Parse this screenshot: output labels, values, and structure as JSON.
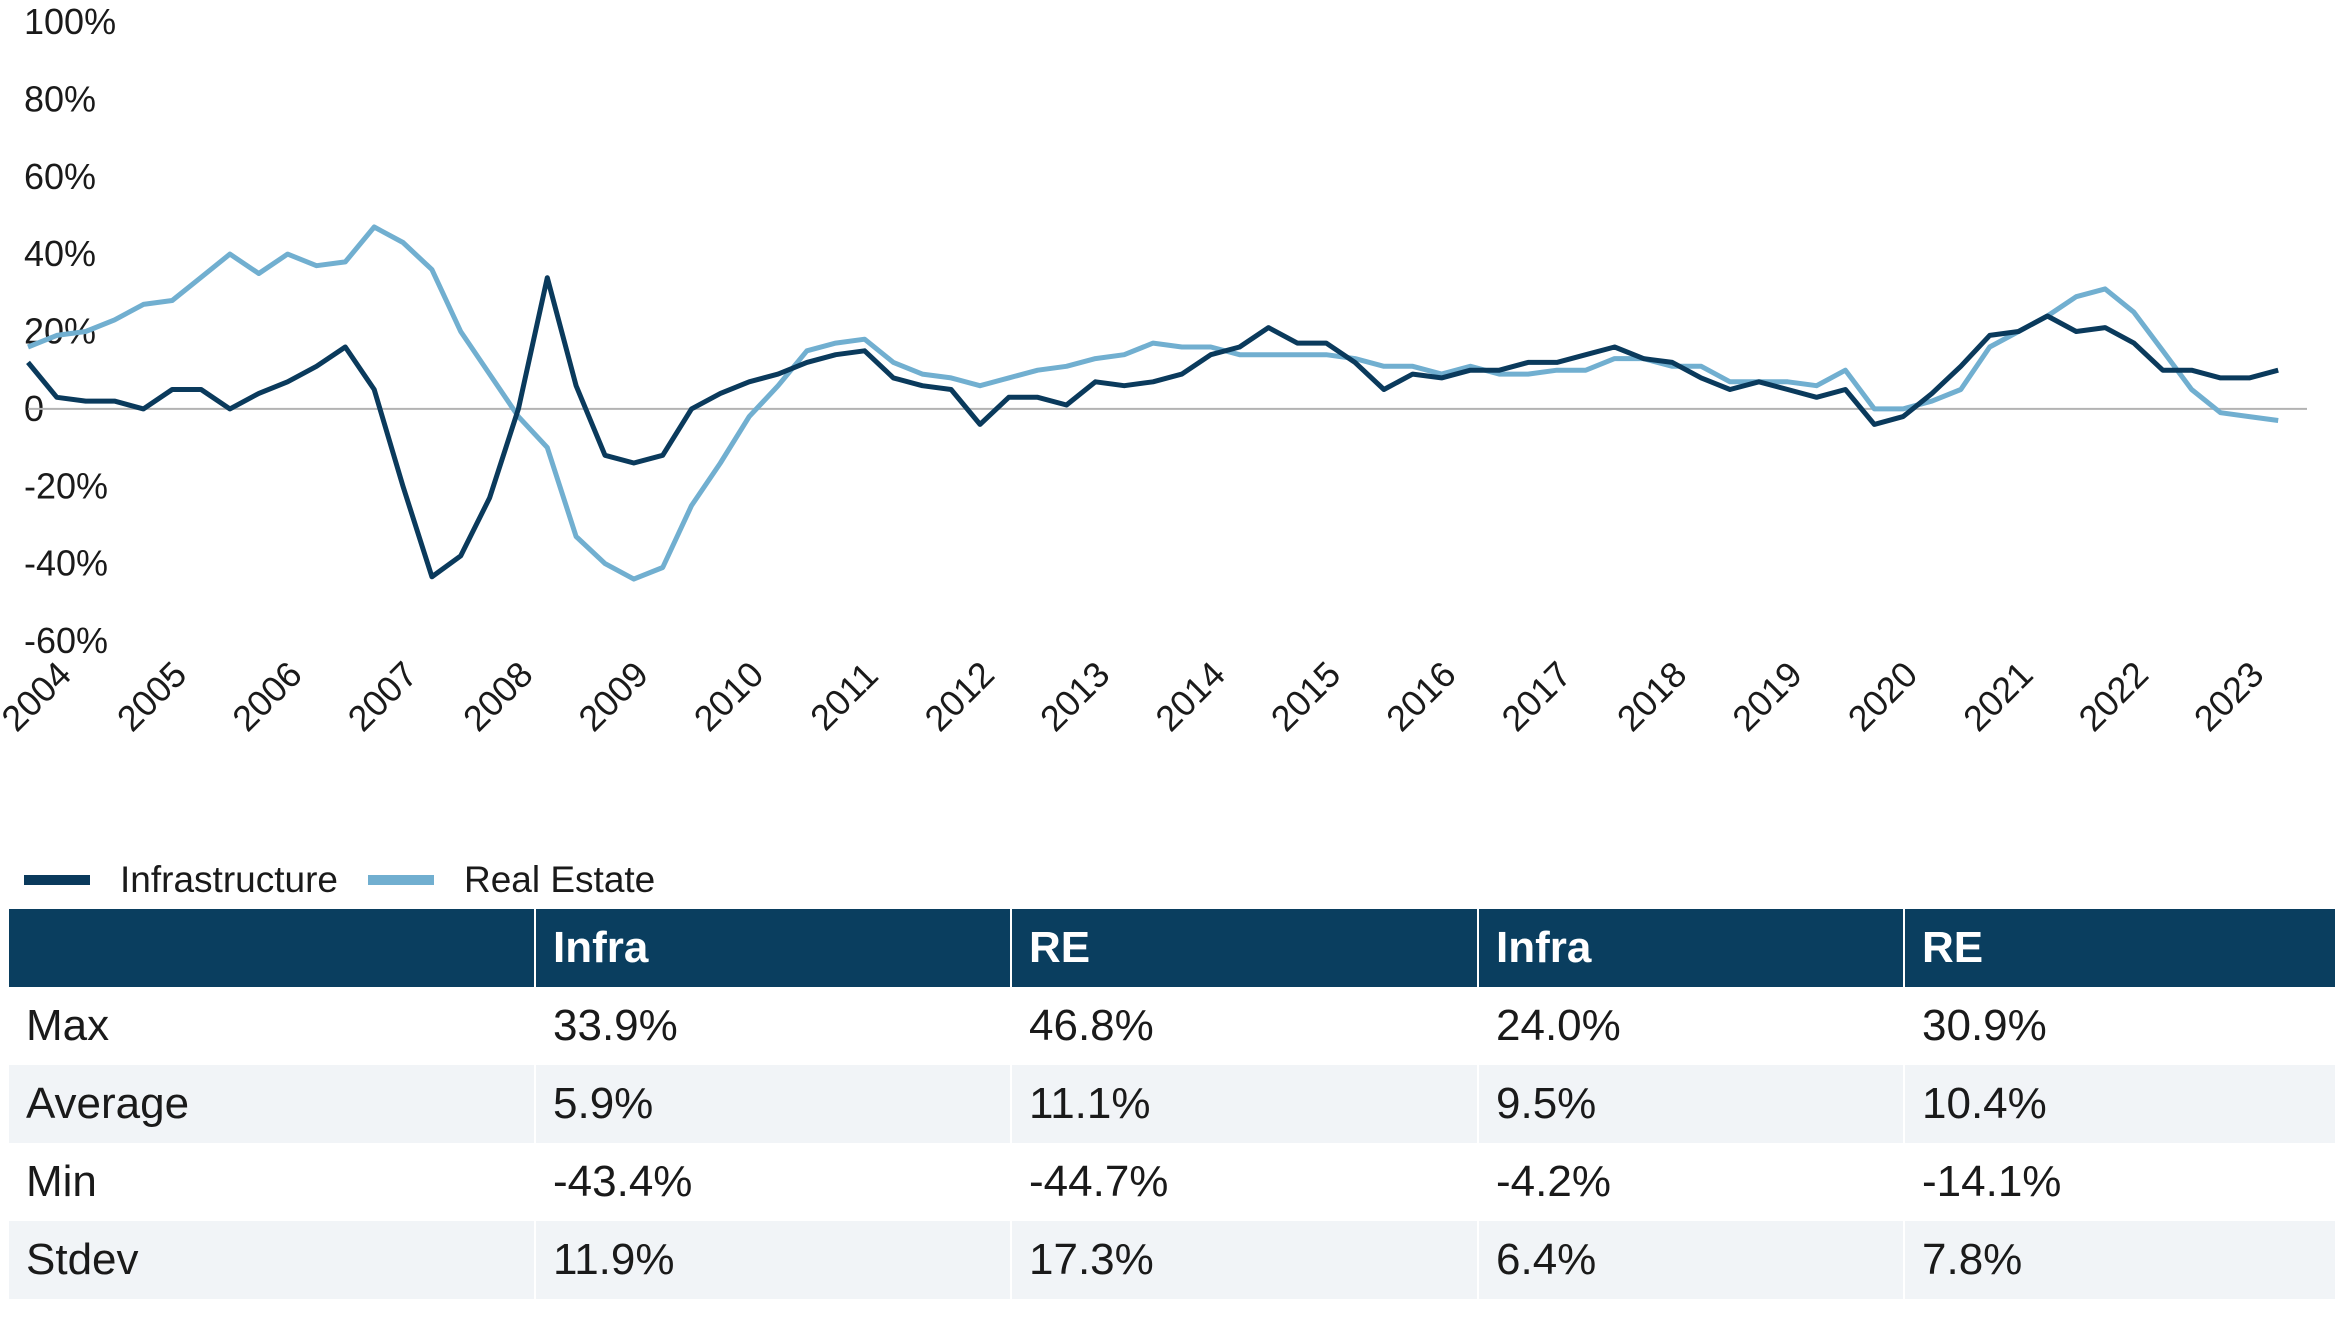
{
  "chart_data": {
    "type": "line",
    "title": "",
    "xlabel": "",
    "ylabel": "",
    "ylim": [
      -60,
      100
    ],
    "y_ticks": [
      -60,
      -40,
      -20,
      0,
      20,
      40,
      60,
      80,
      100
    ],
    "y_tick_labels": [
      "-60%",
      "-40%",
      "-20%",
      "0",
      "20%",
      "40%",
      "60%",
      "80%",
      "100%"
    ],
    "x_range": [
      2004,
      2023.75
    ],
    "x_tick_labels": [
      "2004",
      "2005",
      "2006",
      "2007",
      "2008",
      "2009",
      "2010",
      "2011",
      "2012",
      "2013",
      "2014",
      "2015",
      "2016",
      "2017",
      "2018",
      "2019",
      "2020",
      "2021",
      "2022",
      "2023"
    ],
    "grid": false,
    "legend_position": "bottom-left",
    "series": [
      {
        "name": "Infrastructure",
        "color": "#0a3a5c",
        "x": [
          2004.0,
          2004.25,
          2004.5,
          2004.75,
          2005.0,
          2005.25,
          2005.5,
          2005.75,
          2006.0,
          2006.25,
          2006.5,
          2006.75,
          2007.0,
          2007.25,
          2007.5,
          2007.75,
          2008.0,
          2008.25,
          2008.5,
          2008.75,
          2009.0,
          2009.25,
          2009.5,
          2009.75,
          2010.0,
          2010.25,
          2010.5,
          2010.75,
          2011.0,
          2011.25,
          2011.5,
          2011.75,
          2012.0,
          2012.25,
          2012.5,
          2012.75,
          2013.0,
          2013.25,
          2013.5,
          2013.75,
          2014.0,
          2014.25,
          2014.5,
          2014.75,
          2015.0,
          2015.25,
          2015.5,
          2015.75,
          2016.0,
          2016.25,
          2016.5,
          2016.75,
          2017.0,
          2017.25,
          2017.5,
          2017.75,
          2018.0,
          2018.25,
          2018.5,
          2018.75,
          2019.0,
          2019.25,
          2019.5,
          2019.75,
          2020.0,
          2020.25,
          2020.5,
          2020.75,
          2021.0,
          2021.25,
          2021.5,
          2021.75,
          2022.0,
          2022.25,
          2022.5,
          2022.75,
          2023.0,
          2023.25,
          2023.5,
          2023.75
        ],
        "y": [
          12,
          3,
          2,
          2,
          0,
          5,
          5,
          0,
          4,
          7,
          11,
          16,
          5,
          -20,
          -43.4,
          -38,
          -23,
          0,
          33.9,
          6,
          -12,
          -14,
          -12,
          0,
          4,
          7,
          9,
          12,
          14,
          15,
          8,
          6,
          5,
          -4,
          3,
          3,
          1,
          7,
          6,
          7,
          9,
          14,
          16,
          21,
          17,
          17,
          12,
          5,
          9,
          8,
          10,
          10,
          12,
          12,
          14,
          16,
          13,
          12,
          8,
          5,
          7,
          5,
          3,
          5,
          -4,
          -2,
          4,
          11,
          19,
          20,
          24,
          20,
          21,
          17,
          10,
          10,
          8,
          8,
          10,
          null
        ],
        "range_max": 33.9,
        "range_min": -43.4
      },
      {
        "name": "Real Estate",
        "color": "#71afd0",
        "x": [
          2004.0,
          2004.25,
          2004.5,
          2004.75,
          2005.0,
          2005.25,
          2005.5,
          2005.75,
          2006.0,
          2006.25,
          2006.5,
          2006.75,
          2007.0,
          2007.25,
          2007.5,
          2007.75,
          2008.0,
          2008.25,
          2008.5,
          2008.75,
          2009.0,
          2009.25,
          2009.5,
          2009.75,
          2010.0,
          2010.25,
          2010.5,
          2010.75,
          2011.0,
          2011.25,
          2011.5,
          2011.75,
          2012.0,
          2012.25,
          2012.5,
          2012.75,
          2013.0,
          2013.25,
          2013.5,
          2013.75,
          2014.0,
          2014.25,
          2014.5,
          2014.75,
          2015.0,
          2015.25,
          2015.5,
          2015.75,
          2016.0,
          2016.25,
          2016.5,
          2016.75,
          2017.0,
          2017.25,
          2017.5,
          2017.75,
          2018.0,
          2018.25,
          2018.5,
          2018.75,
          2019.0,
          2019.25,
          2019.5,
          2019.75,
          2020.0,
          2020.25,
          2020.5,
          2020.75,
          2021.0,
          2021.25,
          2021.5,
          2021.75,
          2022.0,
          2022.25,
          2022.5,
          2022.75,
          2023.0,
          2023.25,
          2023.5,
          2023.75
        ],
        "y": [
          16,
          19,
          20,
          23,
          27,
          28,
          34,
          40,
          35,
          40,
          37,
          38,
          47,
          43,
          36,
          20,
          9,
          -2,
          -10,
          -33,
          -40,
          -44,
          -41,
          -25,
          -14,
          -2,
          6,
          15,
          17,
          18,
          12,
          9,
          8,
          6,
          8,
          10,
          11,
          13,
          14,
          17,
          16,
          16,
          14,
          14,
          14,
          14,
          13,
          11,
          11,
          9,
          11,
          9,
          9,
          10,
          10,
          13,
          13,
          11,
          11,
          7,
          7,
          7,
          6,
          10,
          0,
          0,
          2,
          5,
          16,
          20,
          24,
          29,
          31,
          25,
          15,
          5,
          -1,
          -2,
          -3,
          null
        ],
        "range_max": 46.8,
        "range_min": -44.7
      }
    ]
  },
  "legend": [
    {
      "label": "Infrastructure",
      "color": "#0a3a5c"
    },
    {
      "label": "Real Estate",
      "color": "#71afd0"
    }
  ],
  "table": {
    "header_color": "#0a3e5f",
    "headers": [
      "",
      "Infra",
      "RE",
      "Infra",
      "RE"
    ],
    "rows": [
      {
        "label": "Max",
        "values": [
          "33.9%",
          "46.8%",
          "24.0%",
          "30.9%"
        ]
      },
      {
        "label": "Average",
        "values": [
          "5.9%",
          "11.1%",
          "9.5%",
          "10.4%"
        ]
      },
      {
        "label": "Min",
        "values": [
          "-43.4%",
          "-44.7%",
          "-4.2%",
          "-14.1%"
        ]
      },
      {
        "label": "Stdev",
        "values": [
          "11.9%",
          "17.3%",
          "6.4%",
          "7.8%"
        ]
      }
    ]
  }
}
